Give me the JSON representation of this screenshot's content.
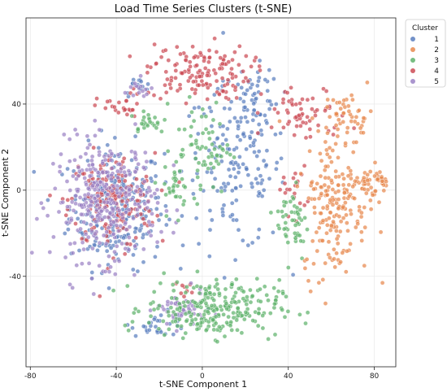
{
  "chart_data": {
    "type": "scatter",
    "title": "Load Time Series Clusters (t-SNE)",
    "xlabel": "t-SNE Component 1",
    "ylabel": "t-SNE Component 2",
    "xlim": [
      -82,
      90
    ],
    "ylim": [
      -82,
      80
    ],
    "xticks": [
      -80,
      -40,
      0,
      40,
      80
    ],
    "yticks": [
      -40,
      0,
      40
    ],
    "grid": true,
    "legend": {
      "title": "Cluster",
      "placement": "outside-top-right"
    },
    "series": [
      {
        "name": "1",
        "color": "#5b7fbf"
      },
      {
        "name": "2",
        "color": "#e8894f"
      },
      {
        "name": "3",
        "color": "#5fb36c"
      },
      {
        "name": "4",
        "color": "#cc4b55"
      },
      {
        "name": "5",
        "color": "#9b82c5"
      }
    ],
    "regions": [
      {
        "series": "1",
        "kind": "blob",
        "cx": -40,
        "cy": -8,
        "rx": 20,
        "ry": 26,
        "n": 260
      },
      {
        "series": "1",
        "kind": "blob",
        "cx": 15,
        "cy": 10,
        "rx": 22,
        "ry": 35,
        "n": 160
      },
      {
        "series": "1",
        "kind": "blob",
        "cx": 25,
        "cy": 40,
        "rx": 10,
        "ry": 15,
        "n": 50
      },
      {
        "series": "1",
        "kind": "blob",
        "cx": -20,
        "cy": -62,
        "rx": 12,
        "ry": 5,
        "n": 30
      },
      {
        "series": "1",
        "kind": "blob",
        "cx": -30,
        "cy": 48,
        "rx": 6,
        "ry": 4,
        "n": 15
      },
      {
        "series": "4",
        "kind": "blob",
        "cx": -42,
        "cy": -5,
        "rx": 18,
        "ry": 20,
        "n": 180
      },
      {
        "series": "4",
        "kind": "blob",
        "cx": -2,
        "cy": 55,
        "rx": 22,
        "ry": 12,
        "n": 140
      },
      {
        "series": "4",
        "kind": "blob",
        "cx": -38,
        "cy": 38,
        "rx": 10,
        "ry": 6,
        "n": 25
      },
      {
        "series": "4",
        "kind": "blob",
        "cx": 48,
        "cy": 35,
        "rx": 18,
        "ry": 12,
        "n": 60
      },
      {
        "series": "4",
        "kind": "blob",
        "cx": 42,
        "cy": 0,
        "rx": 6,
        "ry": 10,
        "n": 20
      },
      {
        "series": "4",
        "kind": "blob",
        "cx": -8,
        "cy": -46,
        "rx": 4,
        "ry": 4,
        "n": 8
      },
      {
        "series": "5",
        "kind": "blob",
        "cx": -45,
        "cy": -5,
        "rx": 22,
        "ry": 25,
        "n": 330
      },
      {
        "series": "5",
        "kind": "blob",
        "cx": -10,
        "cy": -56,
        "rx": 10,
        "ry": 8,
        "n": 50
      },
      {
        "series": "5",
        "kind": "blob",
        "cx": -30,
        "cy": 46,
        "rx": 8,
        "ry": 5,
        "n": 15
      },
      {
        "series": "3",
        "kind": "blob",
        "cx": 5,
        "cy": -55,
        "rx": 28,
        "ry": 12,
        "n": 260
      },
      {
        "series": "3",
        "kind": "blob",
        "cx": 0,
        "cy": 20,
        "rx": 12,
        "ry": 20,
        "n": 70
      },
      {
        "series": "3",
        "kind": "blob",
        "cx": 42,
        "cy": -15,
        "rx": 7,
        "ry": 16,
        "n": 50
      },
      {
        "series": "3",
        "kind": "blob",
        "cx": -25,
        "cy": 32,
        "rx": 8,
        "ry": 5,
        "n": 25
      },
      {
        "series": "3",
        "kind": "blob",
        "cx": -12,
        "cy": 0,
        "rx": 5,
        "ry": 10,
        "n": 25
      },
      {
        "series": "2",
        "kind": "blob",
        "cx": 62,
        "cy": -5,
        "rx": 14,
        "ry": 32,
        "n": 200
      },
      {
        "series": "2",
        "kind": "ring",
        "cx": 80,
        "cy": 3,
        "rx": 6,
        "ry": 6,
        "n": 40
      },
      {
        "series": "2",
        "kind": "blob",
        "cx": 68,
        "cy": 35,
        "rx": 10,
        "ry": 10,
        "n": 45
      }
    ]
  }
}
